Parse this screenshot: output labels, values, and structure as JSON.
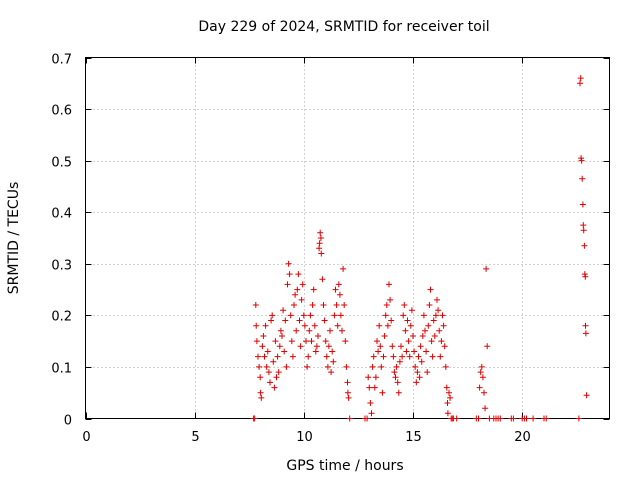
{
  "chart_data": {
    "type": "scatter",
    "title": "Day 229 of 2024, SRMTID for receiver toil",
    "xlabel": "GPS time / hours",
    "ylabel": "SRMTID / TECUs",
    "xlim": [
      0,
      24
    ],
    "ylim": [
      0,
      0.7
    ],
    "xticks": [
      0,
      5,
      10,
      15,
      20
    ],
    "yticks": [
      0,
      0.1,
      0.2,
      0.3,
      0.4,
      0.5,
      0.6,
      0.7
    ],
    "ytick_labels": [
      "0",
      "0.1",
      "0.2",
      "0.3",
      "0.4",
      "0.5",
      "0.6",
      "0.7"
    ],
    "grid": true,
    "marker": "+",
    "color": "#e00000",
    "series": [
      {
        "name": "SRMTID",
        "points": [
          [
            7.7,
            0
          ],
          [
            7.75,
            0
          ],
          [
            7.8,
            0.22
          ],
          [
            7.82,
            0.18
          ],
          [
            7.85,
            0.15
          ],
          [
            7.9,
            0.12
          ],
          [
            7.95,
            0.1
          ],
          [
            8.0,
            0.08
          ],
          [
            8.02,
            0.05
          ],
          [
            8.05,
            0.04
          ],
          [
            8.1,
            0.14
          ],
          [
            8.15,
            0.16
          ],
          [
            8.2,
            0.12
          ],
          [
            8.25,
            0.18
          ],
          [
            8.3,
            0.1
          ],
          [
            8.35,
            0.13
          ],
          [
            8.4,
            0.09
          ],
          [
            8.45,
            0.07
          ],
          [
            8.5,
            0.19
          ],
          [
            8.55,
            0.2
          ],
          [
            8.6,
            0.11
          ],
          [
            8.65,
            0.06
          ],
          [
            8.7,
            0.15
          ],
          [
            8.75,
            0.08
          ],
          [
            8.8,
            0.12
          ],
          [
            8.85,
            0.09
          ],
          [
            8.9,
            0.14
          ],
          [
            8.95,
            0.17
          ],
          [
            9.0,
            0.16
          ],
          [
            9.05,
            0.21
          ],
          [
            9.1,
            0.13
          ],
          [
            9.15,
            0.19
          ],
          [
            9.2,
            0.1
          ],
          [
            9.25,
            0.26
          ],
          [
            9.3,
            0.3
          ],
          [
            9.35,
            0.28
          ],
          [
            9.4,
            0.2
          ],
          [
            9.45,
            0.15
          ],
          [
            9.5,
            0.12
          ],
          [
            9.55,
            0.22
          ],
          [
            9.6,
            0.24
          ],
          [
            9.65,
            0.17
          ],
          [
            9.7,
            0.25
          ],
          [
            9.75,
            0.28
          ],
          [
            9.8,
            0.19
          ],
          [
            9.85,
            0.14
          ],
          [
            9.9,
            0.23
          ],
          [
            9.95,
            0.26
          ],
          [
            10.0,
            0.2
          ],
          [
            10.05,
            0.18
          ],
          [
            10.1,
            0.15
          ],
          [
            10.15,
            0.1
          ],
          [
            10.2,
            0.12
          ],
          [
            10.25,
            0.17
          ],
          [
            10.3,
            0.2
          ],
          [
            10.35,
            0.15
          ],
          [
            10.4,
            0.22
          ],
          [
            10.45,
            0.25
          ],
          [
            10.5,
            0.18
          ],
          [
            10.55,
            0.13
          ],
          [
            10.6,
            0.14
          ],
          [
            10.65,
            0.16
          ],
          [
            10.7,
            0.33
          ],
          [
            10.72,
            0.34
          ],
          [
            10.75,
            0.36
          ],
          [
            10.78,
            0.35
          ],
          [
            10.8,
            0.32
          ],
          [
            10.85,
            0.27
          ],
          [
            10.9,
            0.22
          ],
          [
            10.95,
            0.19
          ],
          [
            11.0,
            0.15
          ],
          [
            11.05,
            0.12
          ],
          [
            11.1,
            0.1
          ],
          [
            11.15,
            0.14
          ],
          [
            11.2,
            0.17
          ],
          [
            11.25,
            0.09
          ],
          [
            11.3,
            0.13
          ],
          [
            11.35,
            0.11
          ],
          [
            11.4,
            0.2
          ],
          [
            11.45,
            0.25
          ],
          [
            11.5,
            0.22
          ],
          [
            11.55,
            0.18
          ],
          [
            11.6,
            0.26
          ],
          [
            11.65,
            0.24
          ],
          [
            11.7,
            0.2
          ],
          [
            11.75,
            0.17
          ],
          [
            11.8,
            0.29
          ],
          [
            11.85,
            0.22
          ],
          [
            11.9,
            0.15
          ],
          [
            11.95,
            0.1
          ],
          [
            12.0,
            0.07
          ],
          [
            12.02,
            0.05
          ],
          [
            12.05,
            0.04
          ],
          [
            12.1,
            0
          ],
          [
            12.8,
            0
          ],
          [
            12.9,
            0
          ],
          [
            12.95,
            0.08
          ],
          [
            13.0,
            0.06
          ],
          [
            13.05,
            0.03
          ],
          [
            13.1,
            0.01
          ],
          [
            13.15,
            0.1
          ],
          [
            13.2,
            0.12
          ],
          [
            13.25,
            0.06
          ],
          [
            13.3,
            0.08
          ],
          [
            13.35,
            0.15
          ],
          [
            13.4,
            0.13
          ],
          [
            13.45,
            0.18
          ],
          [
            13.5,
            0.14
          ],
          [
            13.55,
            0.1
          ],
          [
            13.6,
            0.05
          ],
          [
            13.65,
            0.12
          ],
          [
            13.7,
            0.16
          ],
          [
            13.75,
            0.2
          ],
          [
            13.8,
            0.22
          ],
          [
            13.85,
            0.18
          ],
          [
            13.9,
            0.26
          ],
          [
            13.95,
            0.23
          ],
          [
            14.0,
            0.19
          ],
          [
            14.05,
            0.14
          ],
          [
            14.1,
            0.12
          ],
          [
            14.15,
            0.09
          ],
          [
            14.2,
            0.08
          ],
          [
            14.25,
            0.1
          ],
          [
            14.3,
            0.07
          ],
          [
            14.35,
            0.05
          ],
          [
            14.4,
            0.11
          ],
          [
            14.45,
            0.14
          ],
          [
            14.5,
            0.12
          ],
          [
            14.55,
            0.2
          ],
          [
            14.6,
            0.22
          ],
          [
            14.65,
            0.17
          ],
          [
            14.7,
            0.13
          ],
          [
            14.75,
            0.19
          ],
          [
            14.8,
            0.15
          ],
          [
            14.85,
            0.12
          ],
          [
            14.9,
            0.18
          ],
          [
            14.95,
            0.21
          ],
          [
            15.0,
            0.16
          ],
          [
            15.05,
            0.13
          ],
          [
            15.1,
            0.1
          ],
          [
            15.15,
            0.07
          ],
          [
            15.2,
            0.09
          ],
          [
            15.25,
            0.12
          ],
          [
            15.3,
            0.08
          ],
          [
            15.35,
            0.14
          ],
          [
            15.4,
            0.11
          ],
          [
            15.45,
            0.16
          ],
          [
            15.5,
            0.2
          ],
          [
            15.55,
            0.17
          ],
          [
            15.6,
            0.13
          ],
          [
            15.65,
            0.09
          ],
          [
            15.7,
            0.18
          ],
          [
            15.75,
            0.22
          ],
          [
            15.8,
            0.25
          ],
          [
            15.85,
            0.15
          ],
          [
            15.9,
            0.12
          ],
          [
            15.95,
            0.19
          ],
          [
            16.0,
            0.16
          ],
          [
            16.05,
            0.2
          ],
          [
            16.1,
            0.23
          ],
          [
            16.15,
            0.21
          ],
          [
            16.2,
            0.17
          ],
          [
            16.25,
            0.12
          ],
          [
            16.3,
            0.15
          ],
          [
            16.35,
            0.2
          ],
          [
            16.4,
            0.18
          ],
          [
            16.45,
            0.14
          ],
          [
            16.5,
            0.1
          ],
          [
            16.55,
            0.06
          ],
          [
            16.58,
            0.03
          ],
          [
            16.6,
            0.01
          ],
          [
            16.65,
            0.05
          ],
          [
            16.7,
            0.04
          ],
          [
            16.75,
            0
          ],
          [
            16.8,
            0
          ],
          [
            16.85,
            0
          ],
          [
            17.0,
            0
          ],
          [
            17.9,
            0
          ],
          [
            18.0,
            0
          ],
          [
            18.05,
            0.06
          ],
          [
            18.1,
            0.09
          ],
          [
            18.15,
            0.1
          ],
          [
            18.2,
            0.08
          ],
          [
            18.25,
            0.05
          ],
          [
            18.3,
            0.02
          ],
          [
            18.35,
            0.29
          ],
          [
            18.4,
            0.14
          ],
          [
            18.5,
            0
          ],
          [
            18.7,
            0
          ],
          [
            18.8,
            0
          ],
          [
            18.9,
            0
          ],
          [
            19.0,
            0
          ],
          [
            19.5,
            0
          ],
          [
            19.6,
            0
          ],
          [
            20.0,
            0
          ],
          [
            20.1,
            0
          ],
          [
            20.2,
            0
          ],
          [
            20.5,
            0
          ],
          [
            21.0,
            0
          ],
          [
            21.1,
            0
          ],
          [
            22.6,
            0
          ],
          [
            22.65,
            0.65
          ],
          [
            22.68,
            0.66
          ],
          [
            22.7,
            0.505
          ],
          [
            22.72,
            0.5
          ],
          [
            22.75,
            0.465
          ],
          [
            22.78,
            0.415
          ],
          [
            22.8,
            0.375
          ],
          [
            22.82,
            0.365
          ],
          [
            22.85,
            0.335
          ],
          [
            22.87,
            0.28
          ],
          [
            22.89,
            0.275
          ],
          [
            22.9,
            0.18
          ],
          [
            22.92,
            0.165
          ],
          [
            22.95,
            0.045
          ]
        ]
      }
    ]
  }
}
